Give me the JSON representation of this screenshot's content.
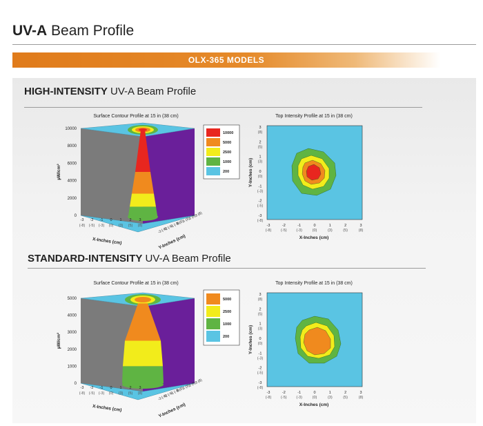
{
  "page": {
    "title_bold": "UV-A",
    "title_rest": " Beam Profile",
    "models_label": "OLX-365  MODELS"
  },
  "sections": [
    {
      "title_bold": "HIGH-INTENSITY",
      "title_rest": " UV-A Beam Profile"
    },
    {
      "title_bold": "STANDARD-INTENSITY",
      "title_rest": " UV-A Beam Profile"
    }
  ],
  "colors": {
    "red": "#e8261f",
    "orange": "#f08a1e",
    "yellow": "#f2ec1b",
    "green": "#5fb443",
    "cyan": "#5ac4e3",
    "purple": "#6a1f9a",
    "gray": "#7b7b7b"
  },
  "chart_data": [
    {
      "type": "surface",
      "title": "Surface Contour Profile at 15 in (38 cm)",
      "xlabel": "X-Inches (cm)",
      "ylabel": "Y-Inches (cm)",
      "zlabel": "µW/cm²",
      "z_ticks": [
        "0",
        "2000",
        "4000",
        "6000",
        "8000",
        "10000"
      ],
      "x_ticks_in": [
        "-3",
        "-2",
        "-1",
        "0",
        "1",
        "2",
        "3"
      ],
      "x_ticks_cm": [
        "(-8)",
        "(-5)",
        "(-3)",
        "(0)",
        "(3)",
        "(5)",
        "(8)"
      ],
      "y_ticks_in": [
        "-3",
        "-2",
        "-1",
        "0",
        "1",
        "2",
        "3"
      ],
      "y_ticks_cm": [
        "(-8)",
        "(-5)",
        "(-3)",
        "(0)",
        "(3)",
        "(5)",
        "(8)"
      ],
      "z_max": 10000,
      "legend": [
        {
          "label": "10000",
          "color": "#e8261f"
        },
        {
          "label": "5000",
          "color": "#f08a1e"
        },
        {
          "label": "2500",
          "color": "#f2ec1b"
        },
        {
          "label": "1000",
          "color": "#5fb443"
        },
        {
          "label": "200",
          "color": "#5ac4e3"
        }
      ]
    },
    {
      "type": "heatmap",
      "title": "Top Intensity Profile at 15 in (38 cm)",
      "xlabel": "X-Inches (cm)",
      "ylabel": "Y-Inches (cm)",
      "x_ticks_in": [
        "-3",
        "-2",
        "-1",
        "0",
        "1",
        "2",
        "3"
      ],
      "x_ticks_cm": [
        "(-8)",
        "(-5)",
        "(-3)",
        "(0)",
        "(3)",
        "(5)",
        "(8)"
      ],
      "y_ticks_in": [
        "-3",
        "-2",
        "-1",
        "0",
        "1",
        "2",
        "3"
      ],
      "y_ticks_cm": [
        "(-8)",
        "(-5)",
        "(-3)",
        "(0)",
        "(3)",
        "(5)",
        "(8)"
      ]
    },
    {
      "type": "surface",
      "title": "Surface Contour Profile at 15 in (38 cm)",
      "xlabel": "X-Inches (cm)",
      "ylabel": "Y-Inches (cm)",
      "zlabel": "µW/cm²",
      "z_ticks": [
        "0",
        "1000",
        "2000",
        "3000",
        "4000",
        "5000"
      ],
      "x_ticks_in": [
        "-3",
        "-2",
        "-1",
        "0",
        "1",
        "2",
        "3"
      ],
      "x_ticks_cm": [
        "(-8)",
        "(-5)",
        "(-3)",
        "(0)",
        "(3)",
        "(5)",
        "(8)"
      ],
      "y_ticks_in": [
        "-3",
        "-2",
        "-1",
        "0",
        "1",
        "2",
        "3"
      ],
      "y_ticks_cm": [
        "(-8)",
        "(-5)",
        "(-3)",
        "(0)",
        "(3)",
        "(5)",
        "(8)"
      ],
      "z_max": 5000,
      "legend": [
        {
          "label": "5000",
          "color": "#f08a1e"
        },
        {
          "label": "2500",
          "color": "#f2ec1b"
        },
        {
          "label": "1000",
          "color": "#5fb443"
        },
        {
          "label": "200",
          "color": "#5ac4e3"
        }
      ]
    },
    {
      "type": "heatmap",
      "title": "Top Intensity Profile at 15 in (38 cm)",
      "xlabel": "X-Inches (cm)",
      "ylabel": "Y-Inches (cm)",
      "x_ticks_in": [
        "-3",
        "-2",
        "-1",
        "0",
        "1",
        "2",
        "3"
      ],
      "x_ticks_cm": [
        "(-8)",
        "(-5)",
        "(-3)",
        "(0)",
        "(3)",
        "(5)",
        "(8)"
      ],
      "y_ticks_in": [
        "-3",
        "-2",
        "-1",
        "0",
        "1",
        "2",
        "3"
      ],
      "y_ticks_cm": [
        "(-8)",
        "(-5)",
        "(-3)",
        "(0)",
        "(3)",
        "(5)",
        "(8)"
      ]
    }
  ]
}
